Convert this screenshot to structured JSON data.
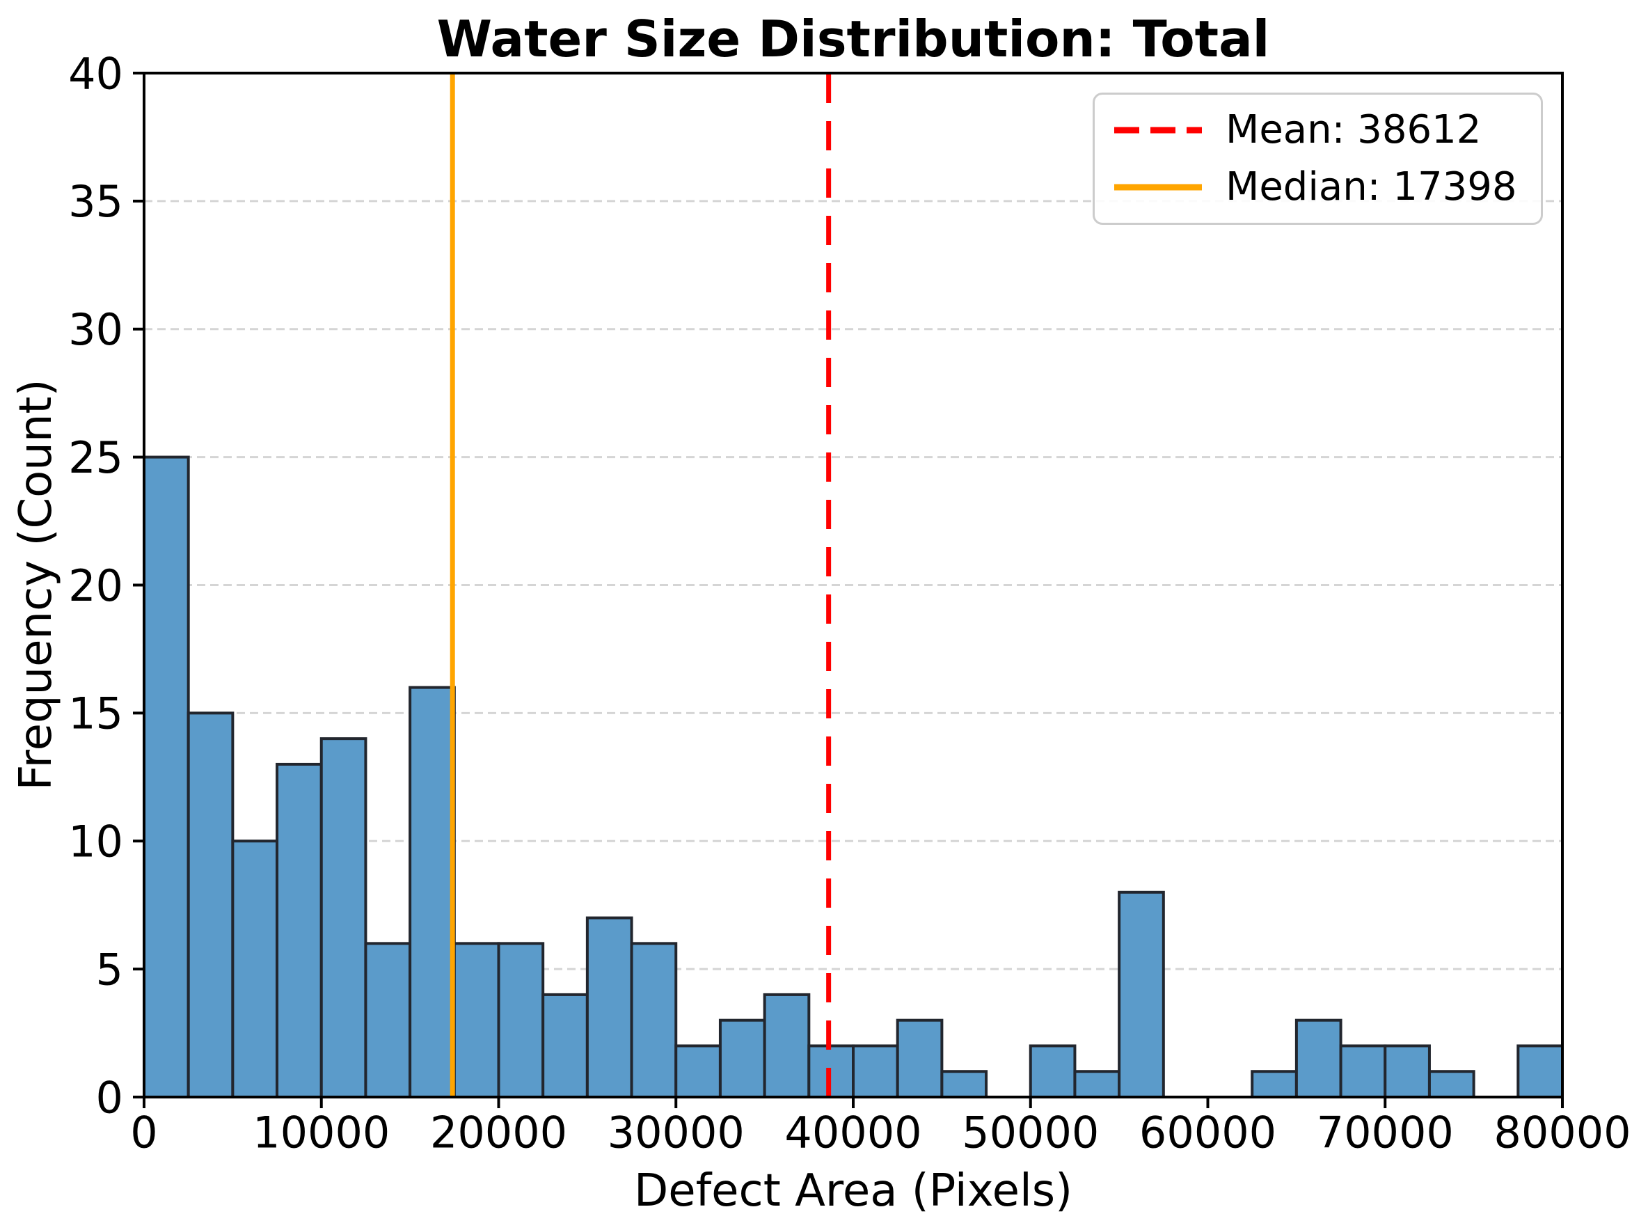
{
  "chart_data": {
    "type": "bar",
    "subtype": "histogram",
    "title": "Water Size Distribution: Total",
    "xlabel": "Defect Area (Pixels)",
    "ylabel": "Frequency (Count)",
    "xlim": [
      0,
      80000
    ],
    "ylim": [
      0,
      40
    ],
    "bin_width": 2500,
    "bin_edges": [
      0,
      2500,
      5000,
      7500,
      10000,
      12500,
      15000,
      17500,
      20000,
      22500,
      25000,
      27500,
      30000,
      32500,
      35000,
      37500,
      40000,
      42500,
      45000,
      47500,
      50000,
      52500,
      55000,
      57500,
      60000,
      62500,
      65000,
      67500,
      70000,
      72500,
      75000,
      77500,
      80000
    ],
    "counts": [
      25,
      15,
      10,
      13,
      14,
      6,
      16,
      6,
      6,
      4,
      7,
      6,
      2,
      3,
      4,
      2,
      2,
      3,
      1,
      0,
      2,
      1,
      8,
      0,
      0,
      1,
      3,
      2,
      2,
      1,
      0,
      2
    ],
    "xticks": [
      0,
      10000,
      20000,
      30000,
      40000,
      50000,
      60000,
      70000,
      80000
    ],
    "yticks": [
      0,
      5,
      10,
      15,
      20,
      25,
      30,
      35,
      40
    ],
    "grid": {
      "axis": "y",
      "style": "dashed",
      "on": true
    },
    "mean": {
      "value": 38612,
      "label": "Mean: 38612",
      "line_style": "dashed"
    },
    "median": {
      "value": 17398,
      "label": "Median: 17398",
      "line_style": "solid"
    },
    "legend": {
      "position": "upper right",
      "entries": [
        {
          "label": "Mean: 38612",
          "color": "#FF0000",
          "style": "dashed"
        },
        {
          "label": "Median: 17398",
          "color": "#FFA500",
          "style": "solid"
        }
      ]
    },
    "colors": {
      "bar_fill": "#5B9BCA",
      "bar_edge": "#22262E",
      "mean_line": "#FF0000",
      "median_line": "#FFA500",
      "grid_line": "#D5D5D5",
      "axis": "#000000",
      "text": "#000000",
      "background": "#FFFFFF",
      "legend_border": "#CCCCCC"
    }
  }
}
